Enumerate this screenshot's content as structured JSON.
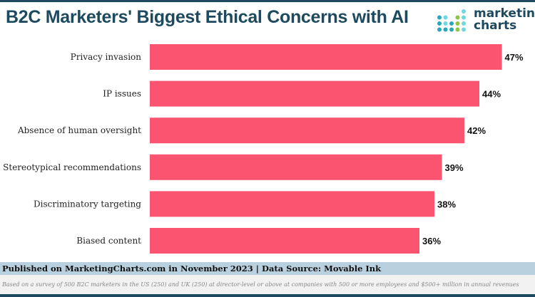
{
  "title": "B2C Marketers' Biggest Ethical Concerns with AI",
  "logo": {
    "line1": "marketing",
    "line2": "charts"
  },
  "footer": {
    "published": "Published on MarketingCharts.com in November 2023 | Data Source: Movable Ink",
    "note": "Based on a survey of 500 B2C marketers in the US (250) and UK (250) at director-level or above at companies with 500 or more employees and $500+ million in annual revenues"
  },
  "chart_data": {
    "type": "bar",
    "orientation": "horizontal",
    "categories": [
      "Privacy invasion",
      "IP issues",
      "Absence of human oversight",
      "Stereotypical recommendations",
      "Discriminatory targeting",
      "Biased content"
    ],
    "values": [
      47,
      44,
      42,
      39,
      38,
      36
    ],
    "labels": [
      "47%",
      "44%",
      "42%",
      "39%",
      "38%",
      "36%"
    ],
    "bar_color": "#fb5470",
    "grid": false
  }
}
